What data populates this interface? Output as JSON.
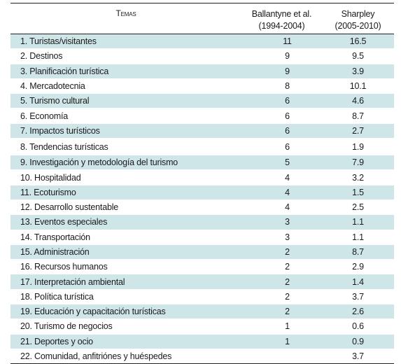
{
  "header": {
    "col_topic": "Temas",
    "col_ballantyne_line1": "Ballantyne et al.",
    "col_ballantyne_line2": "(1994-2004)",
    "col_sharpley_line1": "Sharpley",
    "col_sharpley_line2": "(2005-2010)"
  },
  "shade_color": "#cfe6e8",
  "rows": [
    {
      "topic": "1. Turistas/visitantes",
      "ballantyne": "11",
      "sharpley": "16.5"
    },
    {
      "topic": "2. Destinos",
      "ballantyne": "9",
      "sharpley": "9.5"
    },
    {
      "topic": "3. Planificación turística",
      "ballantyne": "9",
      "sharpley": "3.9"
    },
    {
      "topic": "4. Mercadotecnia",
      "ballantyne": "8",
      "sharpley": "10.1"
    },
    {
      "topic": "5. Turismo cultural",
      "ballantyne": "6",
      "sharpley": "4.6"
    },
    {
      "topic": "6. Economía",
      "ballantyne": "6",
      "sharpley": "8.7"
    },
    {
      "topic": "7. Impactos turísticos",
      "ballantyne": "6",
      "sharpley": "2.7"
    },
    {
      "topic": "8. Tendencias turísticas",
      "ballantyne": "6",
      "sharpley": "1.9"
    },
    {
      "topic": "9. Investigación y metodología del turismo",
      "ballantyne": "5",
      "sharpley": "7.9"
    },
    {
      "topic": "10. Hospitalidad",
      "ballantyne": "4",
      "sharpley": "3.2"
    },
    {
      "topic": "11. Ecoturismo",
      "ballantyne": "4",
      "sharpley": "1.5"
    },
    {
      "topic": "12. Desarrollo sustentable",
      "ballantyne": "4",
      "sharpley": "2.5"
    },
    {
      "topic": "13. Eventos especiales",
      "ballantyne": "3",
      "sharpley": "1.1"
    },
    {
      "topic": "14. Transportación",
      "ballantyne": "3",
      "sharpley": "1.1"
    },
    {
      "topic": "15. Administración",
      "ballantyne": "2",
      "sharpley": "8.7"
    },
    {
      "topic": "16. Recursos humanos",
      "ballantyne": "2",
      "sharpley": "2.9"
    },
    {
      "topic": "17. Interpretación ambiental",
      "ballantyne": "2",
      "sharpley": "1.4"
    },
    {
      "topic": "18. Política turística",
      "ballantyne": "2",
      "sharpley": "3.7"
    },
    {
      "topic": "19. Educación y capacitación turísticas",
      "ballantyne": "2",
      "sharpley": "2.6"
    },
    {
      "topic": "20. Turismo de negocios",
      "ballantyne": "1",
      "sharpley": "0.6"
    },
    {
      "topic": "21. Deportes y ocio",
      "ballantyne": "1",
      "sharpley": "0.9"
    },
    {
      "topic": "22. Comunidad, anfitriónes y huéspedes",
      "ballantyne": "",
      "sharpley": "3.7"
    }
  ]
}
